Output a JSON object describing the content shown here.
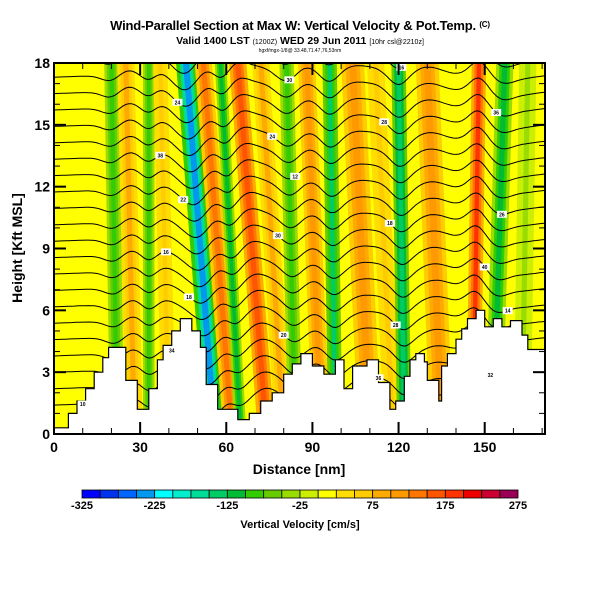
{
  "header": {
    "title": "Wind-Parallel Section at Max W: Vertical Velocity & Pot.Temp.",
    "title_mark": "(C)",
    "subtitle_main": "Valid 1400 LST",
    "subtitle_small1": "(1200Z)",
    "subtitle_main2": "WED 29 Jun 2011",
    "subtitle_small2": "[10hr csl@2210z]",
    "info_line": "hgxf/mgx-1/8@ 33.48,71.47,76,53nm"
  },
  "chart_data": {
    "type": "heatmap",
    "title": "Wind-Parallel Section at Max W: Vertical Velocity & Pot.Temp.",
    "xlabel": "Distance [nm]",
    "ylabel": "Height [Kft MSL]",
    "xlim": [
      0,
      171
    ],
    "ylim": [
      0,
      18
    ],
    "xticks": [
      0,
      30,
      60,
      90,
      120,
      150
    ],
    "xtick_labels": [
      "0",
      "30",
      "60",
      "90",
      "120",
      "150"
    ],
    "yticks": [
      0,
      3,
      6,
      9,
      12,
      15,
      18
    ],
    "ytick_labels": [
      "0",
      "3",
      "6",
      "9",
      "12",
      "15",
      "18"
    ],
    "colorbar": {
      "label": "Vertical Velocity [cm/s]",
      "min": -325,
      "max": 275,
      "step": 25,
      "tick_values": [
        -325,
        -225,
        -125,
        -25,
        75,
        175,
        275
      ],
      "tick_labels": [
        "-325",
        "-225",
        "-125",
        "-25",
        "75",
        "175",
        "275"
      ],
      "colors": [
        "#0000ff",
        "#0033ee",
        "#0066ff",
        "#0099ee",
        "#00ffff",
        "#00eecc",
        "#00dd99",
        "#00cc66",
        "#00bb33",
        "#33cc00",
        "#66cc00",
        "#99dd00",
        "#ccee00",
        "#ffff00",
        "#ffdd00",
        "#ffcc00",
        "#ffaa00",
        "#ff9900",
        "#ff7700",
        "#ff5500",
        "#ff3300",
        "#ee0000",
        "#cc0033",
        "#990055"
      ]
    },
    "velocity_bands": [
      {
        "x_bottom": 0,
        "x_top": 0,
        "width": 20,
        "value": 15
      },
      {
        "x_bottom": 22,
        "x_top": 20,
        "width": 5,
        "value": -100
      },
      {
        "x_bottom": 28,
        "x_top": 25,
        "width": 6,
        "value": 80
      },
      {
        "x_bottom": 33,
        "x_top": 33,
        "width": 4,
        "value": -90
      },
      {
        "x_bottom": 40,
        "x_top": 37,
        "width": 5,
        "value": 60
      },
      {
        "x_bottom": 56,
        "x_top": 46,
        "width": 7,
        "value": -230
      },
      {
        "x_bottom": 62,
        "x_top": 52,
        "width": 6,
        "value": 130
      },
      {
        "x_bottom": 65,
        "x_top": 58,
        "width": 4,
        "value": -110
      },
      {
        "x_bottom": 74,
        "x_top": 64,
        "width": 6,
        "value": 170
      },
      {
        "x_bottom": 80,
        "x_top": 72,
        "width": 6,
        "value": 90
      },
      {
        "x_bottom": 84,
        "x_top": 81,
        "width": 5,
        "value": -100
      },
      {
        "x_bottom": 93,
        "x_top": 88,
        "width": 6,
        "value": 110
      },
      {
        "x_bottom": 98,
        "x_top": 96,
        "width": 5,
        "value": -130
      },
      {
        "x_bottom": 110,
        "x_top": 104,
        "width": 8,
        "value": 120
      },
      {
        "x_bottom": 118,
        "x_top": 112,
        "width": 6,
        "value": 60
      },
      {
        "x_bottom": 122,
        "x_top": 120,
        "width": 5,
        "value": -150
      },
      {
        "x_bottom": 135,
        "x_top": 130,
        "width": 8,
        "value": 110
      },
      {
        "x_bottom": 146,
        "x_top": 148,
        "width": 5,
        "value": 190
      },
      {
        "x_bottom": 153,
        "x_top": 157,
        "width": 6,
        "value": -110
      },
      {
        "x_bottom": 163,
        "x_top": 165,
        "width": 6,
        "value": -30
      }
    ],
    "terrain": [
      [
        0,
        0.3
      ],
      [
        5,
        0.3
      ],
      [
        5,
        1.0
      ],
      [
        8,
        1.0
      ],
      [
        8,
        1.6
      ],
      [
        11,
        1.6
      ],
      [
        11,
        2.2
      ],
      [
        14,
        2.2
      ],
      [
        14,
        3.0
      ],
      [
        17,
        3.0
      ],
      [
        17,
        3.7
      ],
      [
        19,
        3.7
      ],
      [
        19,
        4.2
      ],
      [
        25,
        4.2
      ],
      [
        25,
        2.6
      ],
      [
        29,
        2.6
      ],
      [
        29,
        1.2
      ],
      [
        33,
        1.2
      ],
      [
        33,
        2.2
      ],
      [
        36,
        2.2
      ],
      [
        36,
        3.6
      ],
      [
        38,
        3.6
      ],
      [
        38,
        4.3
      ],
      [
        41,
        4.3
      ],
      [
        41,
        5.0
      ],
      [
        44,
        5.0
      ],
      [
        44,
        5.6
      ],
      [
        48,
        5.6
      ],
      [
        48,
        5.0
      ],
      [
        51,
        5.0
      ],
      [
        51,
        4.2
      ],
      [
        53,
        4.2
      ],
      [
        53,
        2.4
      ],
      [
        57,
        2.4
      ],
      [
        57,
        1.2
      ],
      [
        64,
        1.2
      ],
      [
        64,
        0.7
      ],
      [
        68,
        0.7
      ],
      [
        68,
        1.0
      ],
      [
        72,
        1.0
      ],
      [
        72,
        1.6
      ],
      [
        76,
        1.6
      ],
      [
        76,
        2.0
      ],
      [
        80,
        2.0
      ],
      [
        80,
        2.9
      ],
      [
        83,
        2.9
      ],
      [
        83,
        3.4
      ],
      [
        86,
        3.4
      ],
      [
        86,
        3.9
      ],
      [
        90,
        3.9
      ],
      [
        90,
        3.3
      ],
      [
        94,
        3.3
      ],
      [
        94,
        2.9
      ],
      [
        98,
        2.9
      ],
      [
        98,
        3.6
      ],
      [
        101,
        3.6
      ],
      [
        101,
        2.2
      ],
      [
        104,
        2.2
      ],
      [
        104,
        3.3
      ],
      [
        109,
        3.3
      ],
      [
        109,
        3.6
      ],
      [
        113,
        3.6
      ],
      [
        113,
        2.5
      ],
      [
        117,
        2.5
      ],
      [
        117,
        1.2
      ],
      [
        119,
        1.2
      ],
      [
        119,
        1.6
      ],
      [
        122,
        1.6
      ],
      [
        122,
        2.8
      ],
      [
        124,
        2.8
      ],
      [
        124,
        3.6
      ],
      [
        126,
        3.6
      ],
      [
        126,
        3.9
      ],
      [
        129,
        3.9
      ],
      [
        129,
        3.5
      ],
      [
        130,
        3.5
      ],
      [
        130,
        2.6
      ],
      [
        134,
        2.6
      ],
      [
        134,
        1.6
      ],
      [
        135,
        1.6
      ],
      [
        135,
        3.3
      ],
      [
        137,
        3.3
      ],
      [
        137,
        3.9
      ],
      [
        140,
        3.9
      ],
      [
        140,
        4.6
      ],
      [
        142,
        4.6
      ],
      [
        142,
        5.1
      ],
      [
        144,
        5.1
      ],
      [
        144,
        5.6
      ],
      [
        147,
        5.6
      ],
      [
        147,
        6.0
      ],
      [
        150,
        6.0
      ],
      [
        150,
        5.2
      ],
      [
        153,
        5.2
      ],
      [
        153,
        5.6
      ],
      [
        156,
        5.6
      ],
      [
        156,
        5.2
      ],
      [
        159,
        5.2
      ],
      [
        159,
        5.5
      ],
      [
        163,
        5.5
      ],
      [
        163,
        4.8
      ],
      [
        165,
        4.8
      ],
      [
        165,
        4.1
      ],
      [
        171,
        4.1
      ]
    ],
    "theta_contour_count": 22,
    "theta_contour_labels": [
      "10",
      "18",
      "12",
      "16",
      "14",
      "22",
      "30",
      "28",
      "26",
      "24",
      "20",
      "18",
      "36",
      "34",
      "30",
      "28",
      "32",
      "16",
      "24",
      "36",
      "40",
      "38"
    ],
    "annotations": []
  }
}
